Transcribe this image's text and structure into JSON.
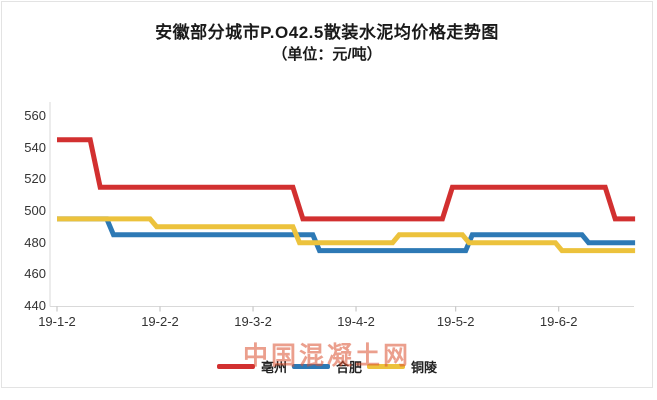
{
  "title": "安徽部分城市P.O42.5散装水泥均价格走势图",
  "subtitle": "（单位：元/吨）",
  "watermark": "中国混凝土网",
  "colors": {
    "bozhou": "#d23030",
    "hefei": "#2d79b5",
    "tongling": "#ecc23c",
    "axis_line": "#d9d9d9",
    "tick": "#bdbdbd",
    "label_text": "#333333",
    "card_border": "#e3e3e3",
    "watermark": "rgba(219,80,47,0.55)"
  },
  "chart_data": {
    "type": "line",
    "title": "安徽部分城市P.O42.5散装水泥均价格走势图",
    "subtitle_unit": "（单位：元/吨）",
    "xlabel": "",
    "ylabel": "元/吨",
    "ylim": [
      440,
      560
    ],
    "y_ticks": [
      560,
      540,
      520,
      500,
      480,
      460,
      440
    ],
    "x_tick_labels": [
      "19-1-2",
      "19-2-2",
      "19-3-2",
      "19-4-2",
      "19-5-2",
      "19-6-2"
    ],
    "x_tick_days": [
      0,
      31,
      59,
      90,
      120,
      151
    ],
    "x_range_days": [
      0,
      174
    ],
    "grid": false,
    "legend_position": "bottom",
    "series": [
      {
        "name": "亳州",
        "color_key": "bozhou",
        "points_day_value": [
          [
            0,
            545
          ],
          [
            10,
            545
          ],
          [
            13,
            515
          ],
          [
            71,
            515
          ],
          [
            74,
            495
          ],
          [
            116,
            495
          ],
          [
            119,
            515
          ],
          [
            165,
            515
          ],
          [
            168,
            495
          ],
          [
            174,
            495
          ]
        ]
      },
      {
        "name": "合肥",
        "color_key": "hefei",
        "points_day_value": [
          [
            0,
            495
          ],
          [
            15,
            495
          ],
          [
            17,
            485
          ],
          [
            77,
            485
          ],
          [
            79,
            475
          ],
          [
            123,
            475
          ],
          [
            125,
            485
          ],
          [
            158,
            485
          ],
          [
            160,
            480
          ],
          [
            174,
            480
          ]
        ]
      },
      {
        "name": "铜陵",
        "color_key": "tongling",
        "points_day_value": [
          [
            0,
            495
          ],
          [
            28,
            495
          ],
          [
            30,
            490
          ],
          [
            71,
            490
          ],
          [
            73,
            480
          ],
          [
            101,
            480
          ],
          [
            103,
            485
          ],
          [
            122,
            485
          ],
          [
            124,
            480
          ],
          [
            150,
            480
          ],
          [
            152,
            475
          ],
          [
            174,
            475
          ]
        ]
      }
    ]
  },
  "legend": {
    "items": [
      {
        "label": "亳州",
        "color_key": "bozhou"
      },
      {
        "label": "合肥",
        "color_key": "hefei"
      },
      {
        "label": "铜陵",
        "color_key": "tongling"
      }
    ]
  }
}
